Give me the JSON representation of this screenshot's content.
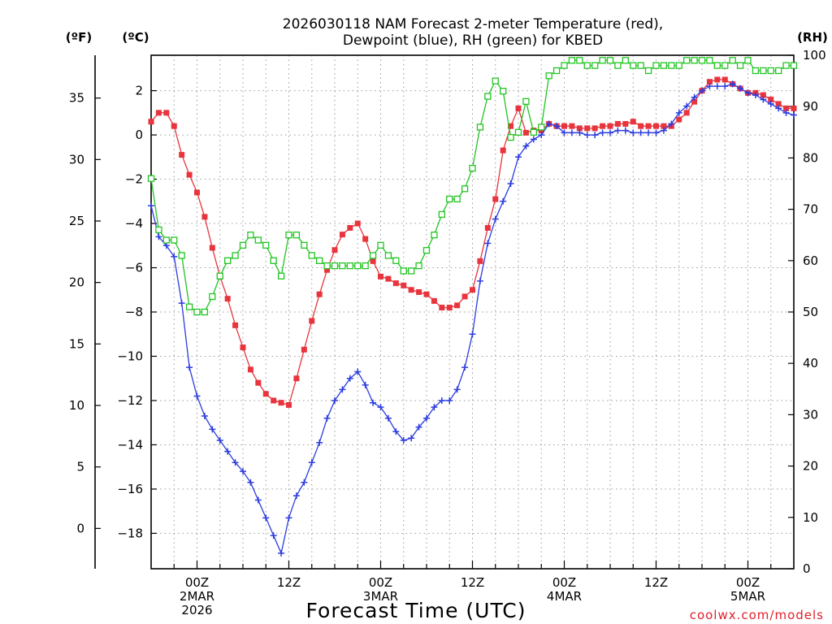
{
  "chart_data": {
    "type": "line",
    "title_line1": "2026030118 NAM Forecast 2-meter Temperature (red),",
    "title_line2": "Dewpoint (blue), RH (green) for KBED",
    "header_left_f": "(ºF)",
    "header_left_c": "(ºC)",
    "header_right": "(RH)",
    "xlabel": "Forecast Time (UTC)",
    "credit": "coolwx.com/models",
    "ylim_c": [
      -19.6,
      3.6
    ],
    "ylim_rh": [
      0,
      100
    ],
    "ylim_f_visible": [
      -3.3,
      38.5
    ],
    "hours_range": [
      -6,
      78
    ],
    "x_tick_labels": [
      {
        "hour": 0,
        "lines": [
          "00Z",
          "2MAR",
          "2026"
        ]
      },
      {
        "hour": 12,
        "lines": [
          "12Z"
        ]
      },
      {
        "hour": 24,
        "lines": [
          "00Z",
          "3MAR"
        ]
      },
      {
        "hour": 36,
        "lines": [
          "12Z"
        ]
      },
      {
        "hour": 48,
        "lines": [
          "00Z",
          "4MAR"
        ]
      },
      {
        "hour": 60,
        "lines": [
          "12Z"
        ]
      },
      {
        "hour": 72,
        "lines": [
          "00Z",
          "5MAR"
        ]
      }
    ],
    "y_ticks_c": [
      "2",
      "0",
      "−2",
      "−4",
      "−6",
      "−8",
      "−10",
      "−12",
      "−14",
      "−16",
      "−18"
    ],
    "y_ticks_c_values": [
      2,
      0,
      -2,
      -4,
      -6,
      -8,
      -10,
      -12,
      -14,
      -16,
      -18
    ],
    "y_ticks_f": [
      "35",
      "30",
      "25",
      "20",
      "15",
      "10",
      "5",
      "0"
    ],
    "y_ticks_f_values": [
      35,
      30,
      25,
      20,
      15,
      10,
      5,
      0
    ],
    "y_ticks_rh": [
      "100",
      "90",
      "80",
      "70",
      "60",
      "50",
      "40",
      "30",
      "20",
      "10",
      "0"
    ],
    "y_ticks_rh_values": [
      100,
      90,
      80,
      70,
      60,
      50,
      40,
      30,
      20,
      10,
      0
    ],
    "series": [
      {
        "name": "Temperature (°C)",
        "axis": "c",
        "color": "#e8343c",
        "marker": "filled-square",
        "points": [
          [
            -6,
            0.6
          ],
          [
            -5,
            1.0
          ],
          [
            -4,
            1.0
          ],
          [
            -3,
            0.4
          ],
          [
            -2,
            -0.9
          ],
          [
            -1,
            -1.8
          ],
          [
            0,
            -2.6
          ],
          [
            1,
            -3.7
          ],
          [
            2,
            -5.1
          ],
          [
            3,
            -6.4
          ],
          [
            4,
            -7.4
          ],
          [
            5,
            -8.6
          ],
          [
            6,
            -9.6
          ],
          [
            7,
            -10.6
          ],
          [
            8,
            -11.2
          ],
          [
            9,
            -11.7
          ],
          [
            10,
            -12.0
          ],
          [
            11,
            -12.1
          ],
          [
            12,
            -12.2
          ],
          [
            13,
            -11.0
          ],
          [
            14,
            -9.7
          ],
          [
            15,
            -8.4
          ],
          [
            16,
            -7.2
          ],
          [
            17,
            -6.1
          ],
          [
            18,
            -5.2
          ],
          [
            19,
            -4.5
          ],
          [
            20,
            -4.2
          ],
          [
            21,
            -4.0
          ],
          [
            22,
            -4.7
          ],
          [
            23,
            -5.7
          ],
          [
            24,
            -6.4
          ],
          [
            25,
            -6.5
          ],
          [
            26,
            -6.7
          ],
          [
            27,
            -6.8
          ],
          [
            28,
            -7.0
          ],
          [
            29,
            -7.1
          ],
          [
            30,
            -7.2
          ],
          [
            31,
            -7.5
          ],
          [
            32,
            -7.8
          ],
          [
            33,
            -7.8
          ],
          [
            34,
            -7.7
          ],
          [
            35,
            -7.3
          ],
          [
            36,
            -7.0
          ],
          [
            37,
            -5.7
          ],
          [
            38,
            -4.2
          ],
          [
            39,
            -2.9
          ],
          [
            40,
            -0.7
          ],
          [
            41,
            0.4
          ],
          [
            42,
            1.2
          ],
          [
            43,
            0.1
          ],
          [
            44,
            0.2
          ],
          [
            45,
            0.2
          ],
          [
            46,
            0.5
          ],
          [
            47,
            0.4
          ],
          [
            48,
            0.4
          ],
          [
            49,
            0.4
          ],
          [
            50,
            0.3
          ],
          [
            51,
            0.3
          ],
          [
            52,
            0.3
          ],
          [
            53,
            0.4
          ],
          [
            54,
            0.4
          ],
          [
            55,
            0.5
          ],
          [
            56,
            0.5
          ],
          [
            57,
            0.6
          ],
          [
            58,
            0.4
          ],
          [
            59,
            0.4
          ],
          [
            60,
            0.4
          ],
          [
            61,
            0.4
          ],
          [
            62,
            0.4
          ],
          [
            63,
            0.7
          ],
          [
            64,
            1.0
          ],
          [
            65,
            1.5
          ],
          [
            66,
            2.0
          ],
          [
            67,
            2.4
          ],
          [
            68,
            2.5
          ],
          [
            69,
            2.5
          ],
          [
            70,
            2.3
          ],
          [
            71,
            2.1
          ],
          [
            72,
            1.9
          ],
          [
            73,
            1.9
          ],
          [
            74,
            1.8
          ],
          [
            75,
            1.6
          ],
          [
            76,
            1.4
          ],
          [
            77,
            1.2
          ],
          [
            78,
            1.2
          ]
        ]
      },
      {
        "name": "Dewpoint (°C)",
        "axis": "c",
        "color": "#2c3ce0",
        "marker": "plus",
        "points": [
          [
            -6,
            -3.2
          ],
          [
            -5,
            -4.6
          ],
          [
            -4,
            -5.0
          ],
          [
            -3,
            -5.5
          ],
          [
            -2,
            -7.6
          ],
          [
            -1,
            -10.5
          ],
          [
            0,
            -11.8
          ],
          [
            1,
            -12.7
          ],
          [
            2,
            -13.3
          ],
          [
            3,
            -13.8
          ],
          [
            4,
            -14.3
          ],
          [
            5,
            -14.8
          ],
          [
            6,
            -15.2
          ],
          [
            7,
            -15.7
          ],
          [
            8,
            -16.5
          ],
          [
            9,
            -17.3
          ],
          [
            10,
            -18.1
          ],
          [
            11,
            -18.9
          ],
          [
            12,
            -17.3
          ],
          [
            13,
            -16.3
          ],
          [
            14,
            -15.7
          ],
          [
            15,
            -14.8
          ],
          [
            16,
            -13.9
          ],
          [
            17,
            -12.8
          ],
          [
            18,
            -12.0
          ],
          [
            19,
            -11.5
          ],
          [
            20,
            -11.0
          ],
          [
            21,
            -10.7
          ],
          [
            22,
            -11.3
          ],
          [
            23,
            -12.1
          ],
          [
            24,
            -12.3
          ],
          [
            25,
            -12.8
          ],
          [
            26,
            -13.4
          ],
          [
            27,
            -13.8
          ],
          [
            28,
            -13.7
          ],
          [
            29,
            -13.2
          ],
          [
            30,
            -12.8
          ],
          [
            31,
            -12.3
          ],
          [
            32,
            -12.0
          ],
          [
            33,
            -12.0
          ],
          [
            34,
            -11.5
          ],
          [
            35,
            -10.5
          ],
          [
            36,
            -9.0
          ],
          [
            37,
            -6.6
          ],
          [
            38,
            -4.9
          ],
          [
            39,
            -3.8
          ],
          [
            40,
            -3.0
          ],
          [
            41,
            -2.2
          ],
          [
            42,
            -1.0
          ],
          [
            43,
            -0.5
          ],
          [
            44,
            -0.2
          ],
          [
            45,
            0.0
          ],
          [
            46,
            0.5
          ],
          [
            47,
            0.4
          ],
          [
            48,
            0.1
          ],
          [
            49,
            0.1
          ],
          [
            50,
            0.1
          ],
          [
            51,
            0.0
          ],
          [
            52,
            0.0
          ],
          [
            53,
            0.1
          ],
          [
            54,
            0.1
          ],
          [
            55,
            0.2
          ],
          [
            56,
            0.2
          ],
          [
            57,
            0.1
          ],
          [
            58,
            0.1
          ],
          [
            59,
            0.1
          ],
          [
            60,
            0.1
          ],
          [
            61,
            0.2
          ],
          [
            62,
            0.5
          ],
          [
            63,
            1.0
          ],
          [
            64,
            1.3
          ],
          [
            65,
            1.7
          ],
          [
            66,
            2.0
          ],
          [
            67,
            2.2
          ],
          [
            68,
            2.2
          ],
          [
            69,
            2.2
          ],
          [
            70,
            2.3
          ],
          [
            71,
            2.1
          ],
          [
            72,
            1.9
          ],
          [
            73,
            1.8
          ],
          [
            74,
            1.6
          ],
          [
            75,
            1.4
          ],
          [
            76,
            1.2
          ],
          [
            77,
            1.0
          ],
          [
            78,
            0.9
          ]
        ]
      },
      {
        "name": "RH (%)",
        "axis": "rh",
        "color": "#22c522",
        "marker": "open-square",
        "points": [
          [
            -6,
            76
          ],
          [
            -5,
            66
          ],
          [
            -4,
            64
          ],
          [
            -3,
            64
          ],
          [
            -2,
            61
          ],
          [
            -1,
            51
          ],
          [
            0,
            50
          ],
          [
            1,
            50
          ],
          [
            2,
            53
          ],
          [
            3,
            57
          ],
          [
            4,
            60
          ],
          [
            5,
            61
          ],
          [
            6,
            63
          ],
          [
            7,
            65
          ],
          [
            8,
            64
          ],
          [
            9,
            63
          ],
          [
            10,
            60
          ],
          [
            11,
            57
          ],
          [
            12,
            65
          ],
          [
            13,
            65
          ],
          [
            14,
            63
          ],
          [
            15,
            61
          ],
          [
            16,
            60
          ],
          [
            17,
            59
          ],
          [
            18,
            59
          ],
          [
            19,
            59
          ],
          [
            20,
            59
          ],
          [
            21,
            59
          ],
          [
            22,
            59
          ],
          [
            23,
            61
          ],
          [
            24,
            63
          ],
          [
            25,
            61
          ],
          [
            26,
            60
          ],
          [
            27,
            58
          ],
          [
            28,
            58
          ],
          [
            29,
            59
          ],
          [
            30,
            62
          ],
          [
            31,
            65
          ],
          [
            32,
            69
          ],
          [
            33,
            72
          ],
          [
            34,
            72
          ],
          [
            35,
            74
          ],
          [
            36,
            78
          ],
          [
            37,
            86
          ],
          [
            38,
            92
          ],
          [
            39,
            95
          ],
          [
            40,
            93
          ],
          [
            41,
            84
          ],
          [
            42,
            85
          ],
          [
            43,
            91
          ],
          [
            44,
            85
          ],
          [
            45,
            86
          ],
          [
            46,
            96
          ],
          [
            47,
            97
          ],
          [
            48,
            98
          ],
          [
            49,
            99
          ],
          [
            50,
            99
          ],
          [
            51,
            98
          ],
          [
            52,
            98
          ],
          [
            53,
            99
          ],
          [
            54,
            99
          ],
          [
            55,
            98
          ],
          [
            56,
            99
          ],
          [
            57,
            98
          ],
          [
            58,
            98
          ],
          [
            59,
            97
          ],
          [
            60,
            98
          ],
          [
            61,
            98
          ],
          [
            62,
            98
          ],
          [
            63,
            98
          ],
          [
            64,
            99
          ],
          [
            65,
            99
          ],
          [
            66,
            99
          ],
          [
            67,
            99
          ],
          [
            68,
            98
          ],
          [
            69,
            98
          ],
          [
            70,
            99
          ],
          [
            71,
            98
          ],
          [
            72,
            99
          ],
          [
            73,
            97
          ],
          [
            74,
            97
          ],
          [
            75,
            97
          ],
          [
            76,
            97
          ],
          [
            77,
            98
          ],
          [
            78,
            98
          ]
        ]
      }
    ]
  }
}
